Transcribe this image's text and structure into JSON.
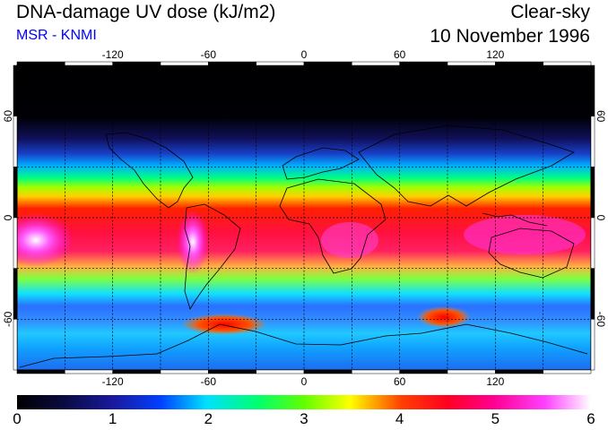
{
  "header": {
    "title": "DNA-damage UV dose (kJ/m2)",
    "source": "MSR - KNMI",
    "condition": "Clear-sky",
    "date": "10 November 1996"
  },
  "map": {
    "projection": "equirectangular",
    "lon_range": [
      -180,
      180
    ],
    "lat_range": [
      -90,
      90
    ],
    "grid_spacing_lon": 30,
    "grid_spacing_lat": 30,
    "lon_tick_labels": [
      "-120",
      "-60",
      "0",
      "60",
      "120"
    ],
    "lon_tick_values": [
      -120,
      -60,
      0,
      60,
      120
    ],
    "lat_tick_labels": [
      "60",
      "0",
      "-60"
    ],
    "lat_tick_values": [
      60,
      0,
      -60
    ],
    "background_color": "#ff2050"
  },
  "colorbar": {
    "labels": [
      "0",
      "1",
      "2",
      "3",
      "4",
      "5",
      "6"
    ],
    "min": 0,
    "max": 6,
    "colors": [
      "#000000",
      "#1a1a8c",
      "#0040ff",
      "#00ffff",
      "#00ff00",
      "#ffff00",
      "#ff0000",
      "#ff0066",
      "#ff00ff",
      "#ffffff"
    ]
  }
}
